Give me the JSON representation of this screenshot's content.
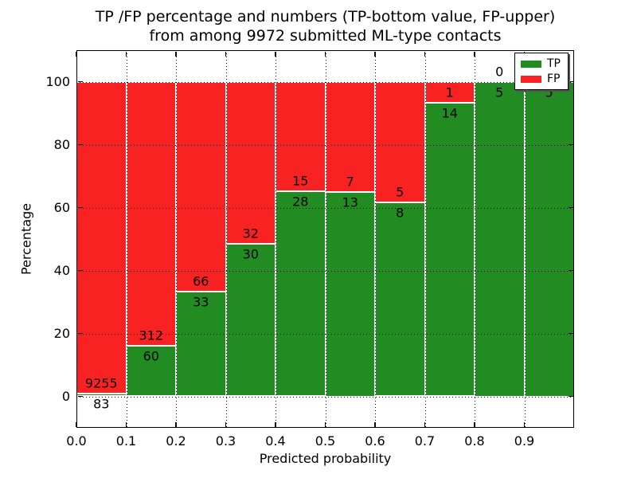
{
  "title": {
    "line1": "TP /FP percentage and numbers (TP-bottom value, FP-upper)",
    "line2": "from among 9972 submitted ML-type contacts"
  },
  "axes": {
    "xlabel": "Predicted probability",
    "ylabel": "Percentage",
    "xticks": [
      "0.0",
      "0.1",
      "0.2",
      "0.3",
      "0.4",
      "0.5",
      "0.6",
      "0.7",
      "0.8",
      "0.9"
    ],
    "yticks": [
      "0",
      "20",
      "40",
      "60",
      "80",
      "100"
    ],
    "xlim": [
      0.0,
      1.0
    ],
    "ylim": [
      -10,
      110
    ],
    "grid": "dotted"
  },
  "legend": {
    "position": "upper right",
    "items": [
      {
        "label": "TP",
        "color": "#228b22"
      },
      {
        "label": "FP",
        "color": "#f82222"
      }
    ]
  },
  "colors": {
    "tp": "#228b22",
    "fp": "#f82222",
    "grid": "#000000",
    "background": "#ffffff",
    "text": "#000000"
  },
  "chart_data": {
    "type": "bar",
    "stacked": true,
    "normalized_to_percent": true,
    "total_contacts": 9972,
    "bin_width": 0.1,
    "categories": [
      "0.0-0.1",
      "0.1-0.2",
      "0.2-0.3",
      "0.3-0.4",
      "0.4-0.5",
      "0.5-0.6",
      "0.6-0.7",
      "0.7-0.8",
      "0.8-0.9",
      "0.9-1.0"
    ],
    "series": [
      {
        "name": "TP",
        "values": [
          83,
          60,
          33,
          30,
          28,
          13,
          8,
          14,
          5,
          5
        ]
      },
      {
        "name": "FP",
        "values": [
          9255,
          312,
          66,
          32,
          15,
          7,
          5,
          1,
          0,
          0
        ]
      }
    ],
    "title": "TP /FP percentage and numbers (TP-bottom value, FP-upper) from among 9972 submitted ML-type contacts",
    "xlabel": "Predicted probability",
    "ylabel": "Percentage"
  }
}
